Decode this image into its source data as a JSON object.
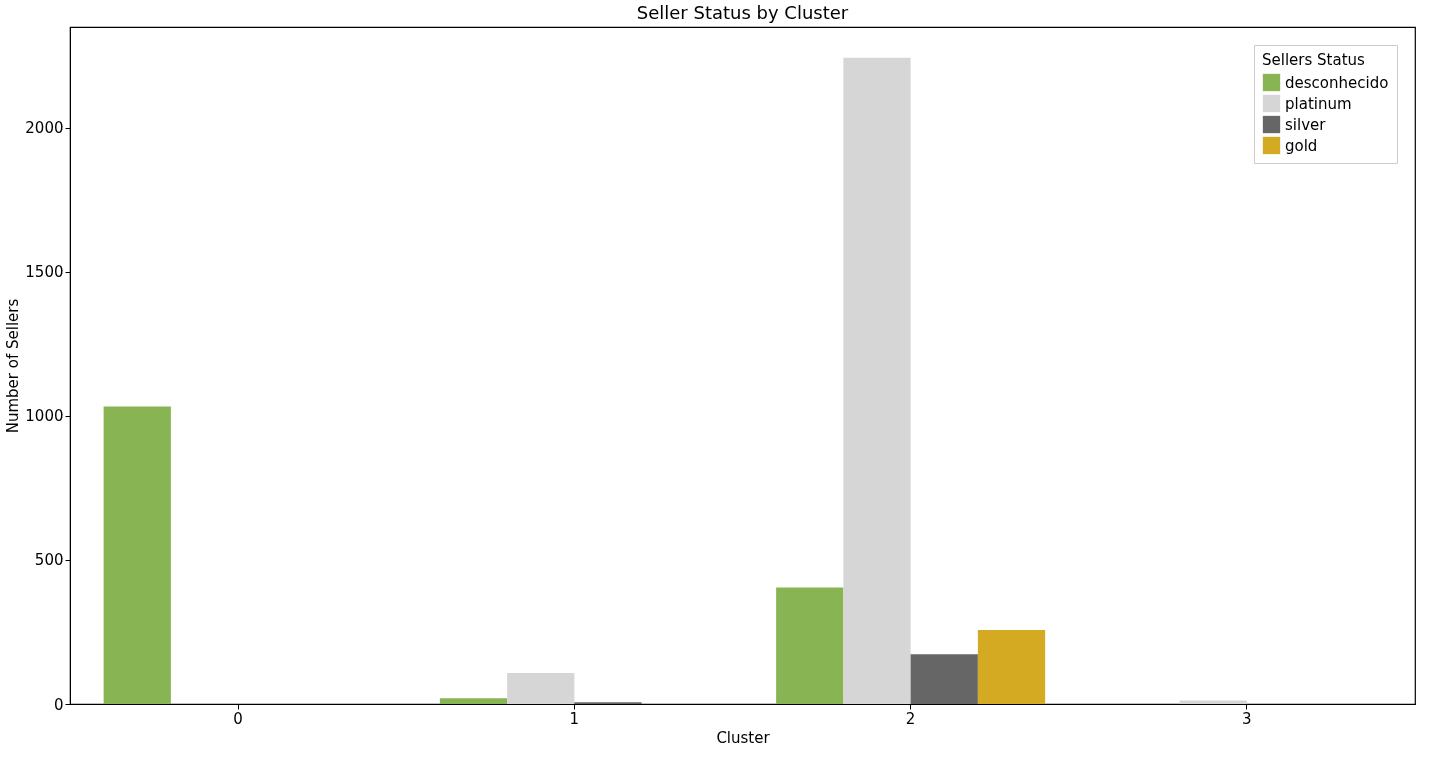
{
  "chart_data": {
    "type": "bar",
    "title": "Seller Status by Cluster",
    "xlabel": "Cluster",
    "ylabel": "Number of Sellers",
    "legend_title": "Sellers Status",
    "categories": [
      "0",
      "1",
      "2",
      "3"
    ],
    "series": [
      {
        "name": "desconhecido",
        "color": "#88b454",
        "values": [
          1033,
          20,
          404,
          null
        ]
      },
      {
        "name": "platinum",
        "color": "#d6d6d6",
        "values": [
          null,
          108,
          2243,
          12
        ]
      },
      {
        "name": "silver",
        "color": "#666666",
        "values": [
          null,
          6,
          173,
          null
        ]
      },
      {
        "name": "gold",
        "color": "#d4aa22",
        "values": [
          null,
          null,
          257,
          null
        ]
      }
    ],
    "ylim": [
      0,
      2350
    ],
    "yticks": [
      0,
      500,
      1000,
      1500,
      2000
    ],
    "grid": false,
    "legend": "top right"
  }
}
